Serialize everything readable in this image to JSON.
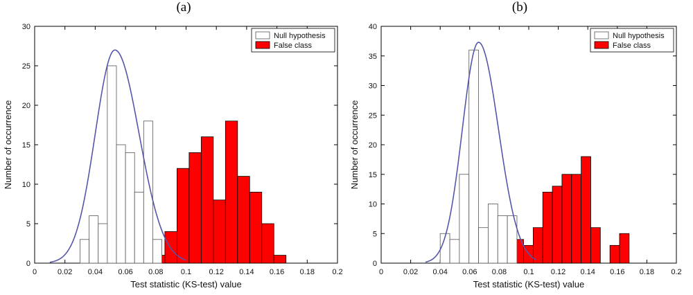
{
  "chart_data": [
    {
      "panel_label": "(a)",
      "type": "histogram",
      "xlabel": "Test statistic (KS-test) value",
      "ylabel": "Number of occurrence",
      "xlim": [
        0,
        0.2
      ],
      "ylim": [
        0,
        30
      ],
      "xticks": [
        "0",
        "0.02",
        "0.04",
        "0.06",
        "0.08",
        "0.1",
        "0.12",
        "0.14",
        "0.16",
        "0.18",
        "0.2"
      ],
      "yticks": [
        "0",
        "5",
        "10",
        "15",
        "20",
        "25",
        "30"
      ],
      "legend": {
        "position": "top-right",
        "null_label": "Null hypothesis",
        "false_label": "False class"
      },
      "colors": {
        "null_fill": "#ffffff",
        "false_fill": "#ff0000",
        "curve": "#5555aa"
      },
      "null_series": {
        "name": "Null hypothesis",
        "bin_width": 0.006,
        "bins": [
          [
            0.03,
            3
          ],
          [
            0.036,
            6
          ],
          [
            0.042,
            5
          ],
          [
            0.048,
            25
          ],
          [
            0.054,
            15
          ],
          [
            0.06,
            14
          ],
          [
            0.066,
            9
          ],
          [
            0.072,
            18
          ],
          [
            0.078,
            3
          ]
        ]
      },
      "false_series": {
        "name": "False class",
        "bin_width": 0.008,
        "bins": [
          [
            0.07,
            1
          ],
          [
            0.078,
            1
          ],
          [
            0.086,
            4
          ],
          [
            0.094,
            12
          ],
          [
            0.102,
            14
          ],
          [
            0.11,
            16
          ],
          [
            0.118,
            8
          ],
          [
            0.126,
            18
          ],
          [
            0.134,
            11
          ],
          [
            0.142,
            9
          ],
          [
            0.15,
            5
          ],
          [
            0.158,
            1
          ]
        ]
      },
      "curve": {
        "peak_x": 0.053,
        "peak_y": 27,
        "sigma_left": 0.013,
        "sigma_right": 0.016,
        "x_start": 0.01,
        "x_end": 0.1
      }
    },
    {
      "panel_label": "(b)",
      "type": "histogram",
      "xlabel": "Test statistic (KS-test) value",
      "ylabel": "Number of occurrence",
      "xlim": [
        0,
        0.2
      ],
      "ylim": [
        0,
        40
      ],
      "xticks": [
        "0",
        "0.02",
        "0.04",
        "0.06",
        "0.08",
        "0.1",
        "0.12",
        "0.14",
        "0.16",
        "0.18",
        "0.2"
      ],
      "yticks": [
        "0",
        "5",
        "10",
        "15",
        "20",
        "25",
        "30",
        "35",
        "40"
      ],
      "legend": {
        "position": "top-right",
        "null_label": "Null hypothesis",
        "false_label": "False class"
      },
      "colors": {
        "null_fill": "#ffffff",
        "false_fill": "#ff0000",
        "curve": "#5555aa"
      },
      "null_series": {
        "name": "Null hypothesis",
        "bin_width": 0.0065,
        "bins": [
          [
            0.04,
            5
          ],
          [
            0.0465,
            4
          ],
          [
            0.053,
            15
          ],
          [
            0.0595,
            36
          ],
          [
            0.066,
            6
          ],
          [
            0.0725,
            10
          ],
          [
            0.079,
            8
          ],
          [
            0.0855,
            8
          ]
        ]
      },
      "false_series": {
        "name": "False class",
        "bin_width": 0.0065,
        "bins": [
          [
            0.09,
            4
          ],
          [
            0.0965,
            3
          ],
          [
            0.103,
            6
          ],
          [
            0.1095,
            12
          ],
          [
            0.116,
            13
          ],
          [
            0.1225,
            15
          ],
          [
            0.129,
            15
          ],
          [
            0.1355,
            18
          ],
          [
            0.142,
            6
          ],
          [
            0.155,
            3
          ],
          [
            0.1615,
            5
          ]
        ]
      },
      "curve": {
        "peak_x": 0.066,
        "peak_y": 37.3,
        "sigma_left": 0.011,
        "sigma_right": 0.0135,
        "x_start": 0.03,
        "x_end": 0.105
      }
    }
  ]
}
